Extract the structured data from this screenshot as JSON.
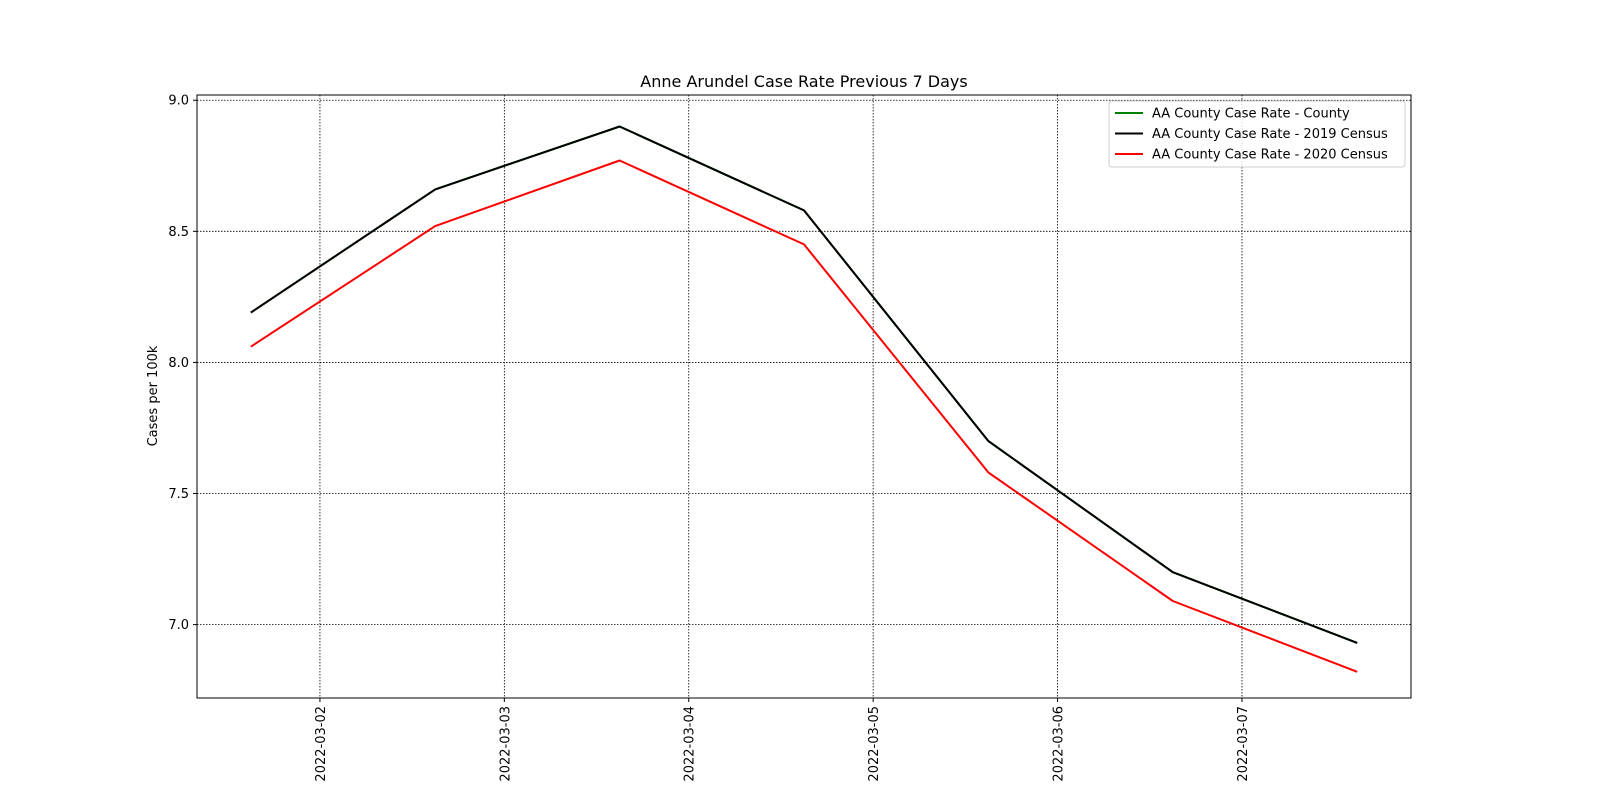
{
  "chart_data": {
    "type": "line",
    "title": "Anne Arundel Case Rate Previous 7 Days",
    "xlabel": "",
    "ylabel": "Cases per 100k",
    "x": [
      "2022-03-01 15:00",
      "2022-03-02 15:00",
      "2022-03-03 15:00",
      "2022-03-04 15:00",
      "2022-03-05 15:00",
      "2022-03-06 15:00",
      "2022-03-07 15:00"
    ],
    "x_tick_labels": [
      "2022-03-02",
      "2022-03-03",
      "2022-03-04",
      "2022-03-05",
      "2022-03-06",
      "2022-03-07"
    ],
    "xlim": [
      "2022-03-01 08:00",
      "2022-03-07 22:00"
    ],
    "ylim": [
      6.72,
      9.02
    ],
    "y_ticks": [
      7.0,
      7.5,
      8.0,
      8.5,
      9.0
    ],
    "y_tick_labels": [
      "7.0",
      "7.5",
      "8.0",
      "8.5",
      "9.0"
    ],
    "grid": true,
    "legend_position": "top-right",
    "series": [
      {
        "name": "AA County Case Rate - County",
        "color": "#008000",
        "values": [
          8.19,
          8.66,
          8.9,
          8.58,
          7.7,
          7.2,
          6.93
        ]
      },
      {
        "name": "AA County Case Rate - 2019 Census",
        "color": "#000000",
        "values": [
          8.19,
          8.66,
          8.9,
          8.58,
          7.7,
          7.2,
          6.93
        ]
      },
      {
        "name": "AA County Case Rate - 2020 Census",
        "color": "#ff0000",
        "values": [
          8.06,
          8.52,
          8.77,
          8.45,
          7.58,
          7.09,
          6.82
        ]
      }
    ]
  }
}
